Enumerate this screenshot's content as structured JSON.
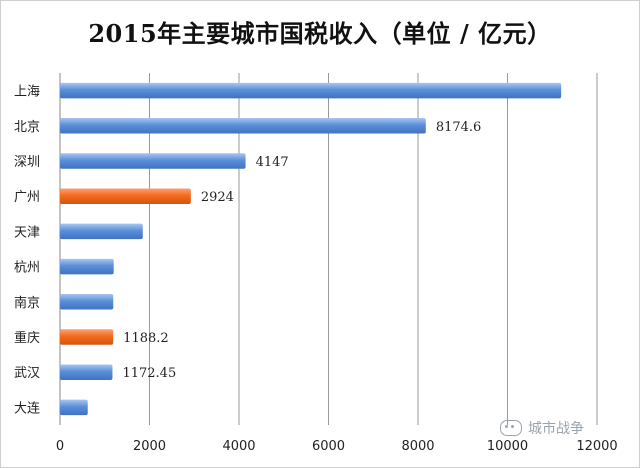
{
  "chart_data": {
    "type": "bar",
    "orientation": "horizontal",
    "title": "2015年主要城市国税收入（单位 / 亿元）",
    "categories": [
      "上海",
      "北京",
      "深圳",
      "广州",
      "天津",
      "杭州",
      "南京",
      "重庆",
      "武汉",
      "大连"
    ],
    "values": [
      11200,
      8174.6,
      4147,
      2924,
      1850,
      1200,
      1190,
      1188.2,
      1172.45,
      620
    ],
    "data_labels": [
      "",
      "8174.6",
      "4147",
      "2924",
      "",
      "",
      "",
      "1188.2",
      "1172.45",
      ""
    ],
    "highlight": [
      "广州",
      "重庆"
    ],
    "xlim": [
      0,
      12000
    ],
    "xticks": [
      "0",
      "2000",
      "4000",
      "6000",
      "8000",
      "10000",
      "12000"
    ],
    "xlabel": "",
    "ylabel": "",
    "grid": true,
    "colors": {
      "default": "#5b8fd9",
      "default_light": "#a9c6f0",
      "default_dark": "#3f73c0",
      "highlight": "#f26c1f",
      "highlight_light": "#ffa070",
      "highlight_dark": "#d4530c",
      "grid": "#9a9a9a"
    }
  },
  "watermark": "城市战争"
}
